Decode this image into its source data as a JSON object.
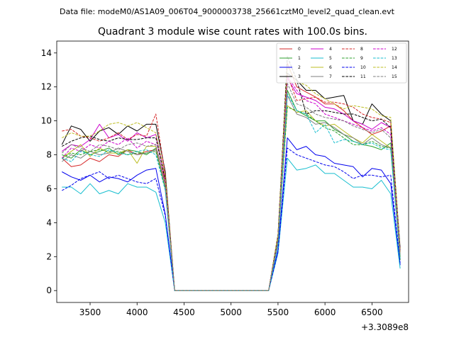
{
  "figure": {
    "suptitle": "Data file: modeM0/AS1A09_006T04_9000003738_25661cztM0_level2_quad_clean.evt",
    "offset_label": "+3.3089e8"
  },
  "chart_data": {
    "type": "line",
    "title": "Quadrant 3 module wise count rates with 100.0s bins.",
    "xlabel": "",
    "ylabel": "",
    "x_offset": 330890000,
    "xlim": [
      3145,
      6890
    ],
    "ylim": [
      -0.7,
      14.7
    ],
    "xticks": [
      3500,
      4000,
      4500,
      5000,
      5500,
      6000,
      6500
    ],
    "yticks": [
      0,
      2,
      4,
      6,
      8,
      10,
      12,
      14
    ],
    "grid": false,
    "legend": {
      "placement": "top-right",
      "columns": 4
    },
    "x": [
      3200,
      3300,
      3400,
      3500,
      3600,
      3700,
      3800,
      3900,
      4000,
      4100,
      4200,
      4300,
      4400,
      4500,
      4600,
      4700,
      4800,
      4900,
      5000,
      5100,
      5200,
      5300,
      5400,
      5500,
      5600,
      5700,
      5800,
      5900,
      6000,
      6100,
      6200,
      6300,
      6400,
      6500,
      6600,
      6700,
      6800
    ],
    "series": [
      {
        "name": "0",
        "color": "#d62728",
        "style": "solid",
        "values": [
          7.8,
          7.3,
          7.4,
          7.8,
          7.6,
          8.0,
          7.9,
          8.3,
          8.0,
          8.2,
          8.3,
          6.5,
          0,
          0,
          0,
          0,
          0,
          0,
          0,
          0,
          0,
          0,
          0,
          3.2,
          13.4,
          12.0,
          11.7,
          11.4,
          11.0,
          11.0,
          10.6,
          10.0,
          9.6,
          9.2,
          9.4,
          9.7,
          2.3
        ]
      },
      {
        "name": "1",
        "color": "#2ca02c",
        "style": "solid",
        "values": [
          8.0,
          7.8,
          8.3,
          8.0,
          8.2,
          8.4,
          8.0,
          8.3,
          8.2,
          8.0,
          8.4,
          6.0,
          0,
          0,
          0,
          0,
          0,
          0,
          0,
          0,
          0,
          0,
          0,
          2.8,
          11.8,
          10.6,
          10.3,
          10.0,
          10.0,
          9.5,
          9.2,
          8.8,
          8.6,
          8.5,
          8.3,
          8.7,
          1.8
        ]
      },
      {
        "name": "2",
        "color": "#0000ee",
        "style": "solid",
        "values": [
          7.0,
          6.7,
          6.5,
          6.8,
          6.4,
          6.7,
          6.6,
          6.4,
          6.8,
          7.1,
          7.2,
          4.5,
          0,
          0,
          0,
          0,
          0,
          0,
          0,
          0,
          0,
          0,
          0,
          2.4,
          9.0,
          8.3,
          8.5,
          8.0,
          7.9,
          7.5,
          7.4,
          7.3,
          6.7,
          7.2,
          7.1,
          6.3,
          1.5
        ]
      },
      {
        "name": "3",
        "color": "#000000",
        "style": "solid",
        "values": [
          8.6,
          9.7,
          9.5,
          8.8,
          9.4,
          9.6,
          9.2,
          9.7,
          9.4,
          9.8,
          9.8,
          7.0,
          0,
          0,
          0,
          0,
          0,
          0,
          0,
          0,
          0,
          0,
          0,
          3.3,
          12.8,
          12.4,
          11.8,
          11.8,
          11.3,
          11.4,
          11.5,
          10.0,
          9.8,
          11.0,
          10.4,
          10.0,
          2.5
        ]
      },
      {
        "name": "4",
        "color": "#cc00cc",
        "style": "solid",
        "values": [
          8.2,
          8.6,
          8.5,
          8.9,
          9.8,
          9.0,
          9.2,
          8.8,
          9.3,
          9.0,
          9.2,
          6.6,
          0,
          0,
          0,
          0,
          0,
          0,
          0,
          0,
          0,
          0,
          0,
          3.2,
          12.5,
          11.6,
          11.4,
          11.2,
          10.8,
          10.7,
          10.4,
          10.0,
          9.8,
          9.5,
          9.9,
          9.6,
          2.3
        ]
      },
      {
        "name": "5",
        "color": "#17becf",
        "style": "solid",
        "values": [
          6.1,
          6.1,
          5.7,
          6.3,
          5.7,
          5.9,
          5.7,
          6.3,
          6.1,
          6.1,
          5.8,
          4.0,
          0,
          0,
          0,
          0,
          0,
          0,
          0,
          0,
          0,
          0,
          0,
          2.2,
          7.8,
          7.1,
          7.2,
          7.4,
          6.9,
          6.9,
          6.5,
          6.1,
          6.1,
          6.0,
          6.5,
          5.7,
          1.3
        ]
      },
      {
        "name": "6",
        "color": "#bcbd22",
        "style": "solid",
        "values": [
          7.8,
          8.2,
          8.6,
          7.9,
          8.4,
          8.1,
          8.1,
          8.3,
          7.5,
          8.5,
          8.5,
          6.1,
          0,
          0,
          0,
          0,
          0,
          0,
          0,
          0,
          0,
          0,
          0,
          2.9,
          10.9,
          10.5,
          10.6,
          10.0,
          9.7,
          9.8,
          9.4,
          9.0,
          8.7,
          9.2,
          8.8,
          8.4,
          2.0
        ]
      },
      {
        "name": "7",
        "color": "#7f7f7f",
        "style": "solid",
        "values": [
          7.6,
          8.0,
          7.8,
          8.2,
          8.0,
          8.1,
          8.4,
          8.2,
          8.0,
          8.1,
          8.3,
          6.0,
          0,
          0,
          0,
          0,
          0,
          0,
          0,
          0,
          0,
          0,
          0,
          2.8,
          11.5,
          10.4,
          10.2,
          9.8,
          9.9,
          9.6,
          9.2,
          9.0,
          8.6,
          9.0,
          8.6,
          8.4,
          2.0
        ]
      },
      {
        "name": "8",
        "color": "#d62728",
        "style": "dashed",
        "values": [
          9.4,
          9.5,
          9.1,
          9.0,
          8.8,
          9.0,
          9.3,
          8.9,
          9.2,
          9.1,
          10.4,
          6.8,
          0,
          0,
          0,
          0,
          0,
          0,
          0,
          0,
          0,
          0,
          0,
          3.2,
          12.7,
          11.2,
          11.3,
          11.4,
          11.1,
          11.1,
          11.0,
          10.8,
          10.4,
          10.2,
          10.1,
          9.9,
          2.3
        ]
      },
      {
        "name": "9",
        "color": "#2ca02c",
        "style": "dashed",
        "values": [
          7.8,
          8.1,
          8.0,
          8.2,
          8.3,
          8.2,
          8.2,
          8.0,
          8.1,
          8.1,
          8.2,
          6.0,
          0,
          0,
          0,
          0,
          0,
          0,
          0,
          0,
          0,
          0,
          0,
          2.8,
          10.8,
          10.6,
          10.4,
          10.0,
          9.6,
          9.4,
          9.0,
          8.6,
          8.6,
          8.8,
          8.5,
          8.4,
          2.0
        ]
      },
      {
        "name": "10",
        "color": "#0000ee",
        "style": "dashed",
        "values": [
          5.9,
          6.2,
          6.6,
          6.8,
          7.0,
          6.6,
          6.8,
          6.6,
          6.4,
          6.3,
          6.6,
          4.4,
          0,
          0,
          0,
          0,
          0,
          0,
          0,
          0,
          0,
          0,
          0,
          2.3,
          8.4,
          8.0,
          7.8,
          7.6,
          7.4,
          7.3,
          7.0,
          6.6,
          6.8,
          6.8,
          6.7,
          6.8,
          1.6
        ]
      },
      {
        "name": "11",
        "color": "#000000",
        "style": "dashed",
        "values": [
          8.5,
          8.8,
          9.0,
          9.1,
          8.9,
          8.8,
          9.0,
          8.9,
          8.9,
          9.0,
          9.0,
          6.5,
          0,
          0,
          0,
          0,
          0,
          0,
          0,
          0,
          0,
          0,
          0,
          3.2,
          13.8,
          12.4,
          10.4,
          10.6,
          10.6,
          10.5,
          10.4,
          10.4,
          10.2,
          10.0,
          10.1,
          9.6,
          2.3
        ]
      },
      {
        "name": "12",
        "color": "#cc00cc",
        "style": "dashed",
        "values": [
          7.8,
          8.4,
          8.2,
          8.6,
          8.4,
          8.8,
          8.6,
          9.0,
          8.4,
          8.8,
          8.6,
          6.3,
          0,
          0,
          0,
          0,
          0,
          0,
          0,
          0,
          0,
          0,
          0,
          3.0,
          12.6,
          11.8,
          11.2,
          11.0,
          10.4,
          10.2,
          10.0,
          9.8,
          9.6,
          9.4,
          9.6,
          9.2,
          2.2
        ]
      },
      {
        "name": "13",
        "color": "#17becf",
        "style": "dashed",
        "values": [
          7.8,
          7.6,
          8.2,
          8.0,
          7.9,
          8.3,
          8.1,
          8.0,
          8.2,
          8.3,
          8.0,
          5.9,
          0,
          0,
          0,
          0,
          0,
          0,
          0,
          0,
          0,
          0,
          0,
          2.7,
          11.6,
          10.6,
          10.4,
          9.3,
          9.8,
          8.7,
          8.9,
          8.8,
          8.6,
          8.7,
          8.4,
          8.3,
          1.9
        ]
      },
      {
        "name": "14",
        "color": "#bcbd22",
        "style": "dashed",
        "values": [
          9.0,
          9.3,
          9.1,
          9.1,
          9.4,
          9.8,
          9.9,
          9.7,
          9.9,
          9.6,
          9.3,
          6.7,
          0,
          0,
          0,
          0,
          0,
          0,
          0,
          0,
          0,
          0,
          0,
          3.3,
          13.2,
          12.3,
          12.1,
          11.6,
          11.3,
          11.0,
          10.7,
          10.9,
          10.8,
          10.7,
          10.3,
          10.2,
          2.3
        ]
      },
      {
        "name": "15",
        "color": "#7f7f7f",
        "style": "dashed",
        "values": [
          8.1,
          8.6,
          8.4,
          8.2,
          8.6,
          8.5,
          8.3,
          8.6,
          8.7,
          8.5,
          8.6,
          6.2,
          0,
          0,
          0,
          0,
          0,
          0,
          0,
          0,
          0,
          0,
          0,
          3.0,
          12.2,
          11.0,
          10.8,
          10.4,
          10.2,
          10.1,
          10.0,
          9.7,
          9.5,
          9.3,
          9.5,
          9.0,
          2.1
        ]
      }
    ]
  }
}
